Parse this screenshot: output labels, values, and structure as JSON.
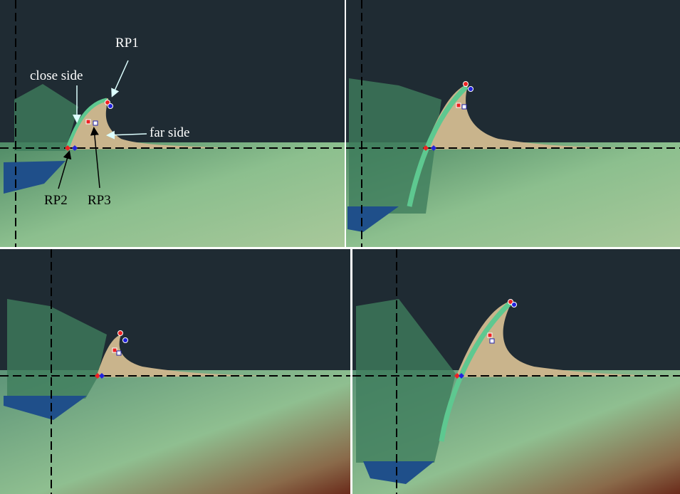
{
  "annotations": {
    "rp1": "RP1",
    "close_side": "close side",
    "far_side": "far side",
    "rp2": "RP2",
    "rp3": "RP3"
  }
}
